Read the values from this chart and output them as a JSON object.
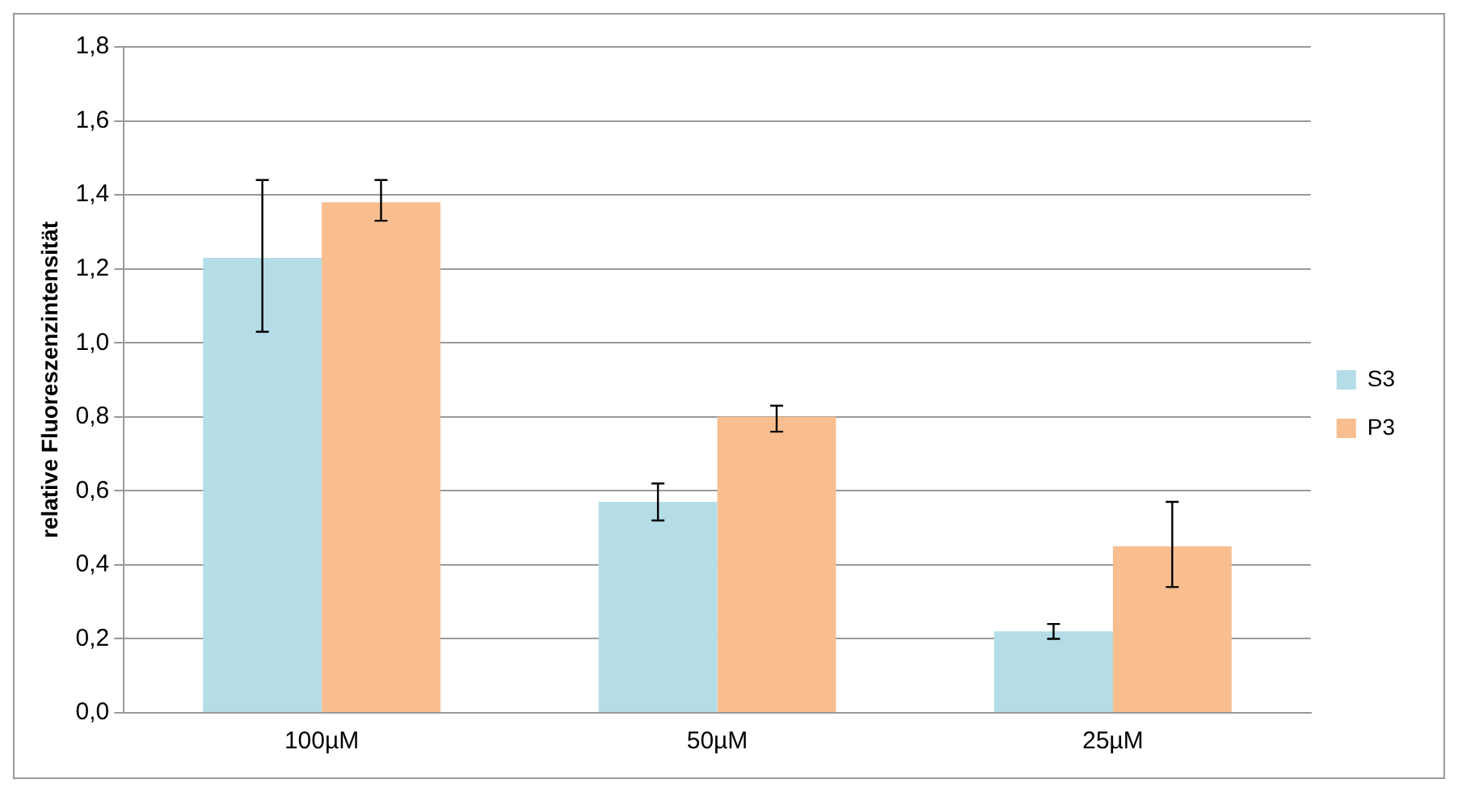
{
  "chart_data": {
    "type": "bar",
    "ylabel": "relative Fluoreszenzintensität",
    "categories": [
      "100µM",
      "50µM",
      "25µM"
    ],
    "series": [
      {
        "name": "S3",
        "color": "#b4dde7",
        "values": [
          1.23,
          0.57,
          0.22
        ],
        "errors": [
          [
            1.03,
            1.44
          ],
          [
            0.52,
            0.62
          ],
          [
            0.2,
            0.24
          ]
        ]
      },
      {
        "name": "P3",
        "color": "#f9be8f",
        "values": [
          1.38,
          0.8,
          0.45
        ],
        "errors": [
          [
            1.33,
            1.44
          ],
          [
            0.76,
            0.83
          ],
          [
            0.34,
            0.57
          ]
        ]
      }
    ],
    "ylim": [
      0,
      1.8
    ],
    "yticks": [
      {
        "value": 0,
        "label": "0,0"
      },
      {
        "value": 0.2,
        "label": "0,2"
      },
      {
        "value": 0.4,
        "label": "0,4"
      },
      {
        "value": 0.6,
        "label": "0,6"
      },
      {
        "value": 0.8,
        "label": "0,8"
      },
      {
        "value": 1,
        "label": "1,0"
      },
      {
        "value": 1.2,
        "label": "1,2"
      },
      {
        "value": 1.4,
        "label": "1,4"
      },
      {
        "value": 1.6,
        "label": "1,6"
      },
      {
        "value": 1.8,
        "label": "1,8"
      }
    ],
    "grid": "y",
    "legend": "right"
  }
}
